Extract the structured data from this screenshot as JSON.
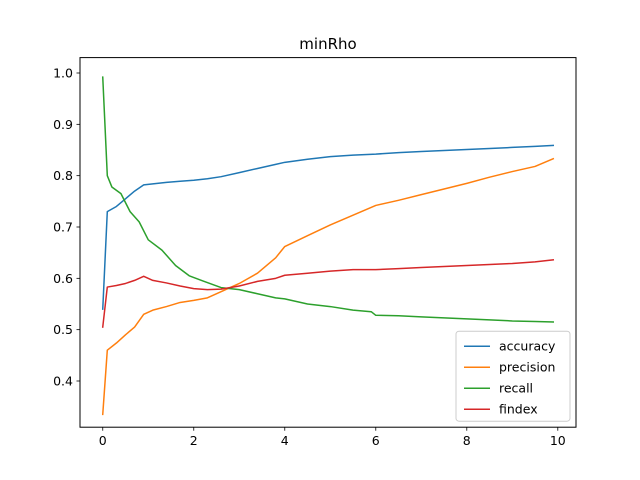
{
  "chart_data": {
    "type": "line",
    "title": "minRho",
    "xlabel": "",
    "ylabel": "",
    "xlim": [
      -0.5,
      10.4
    ],
    "ylim": [
      0.31,
      1.03
    ],
    "grid": false,
    "legend_position": "bottom-right",
    "x_ticks": [
      0,
      2,
      4,
      6,
      8,
      10
    ],
    "y_ticks": [
      0.4,
      0.5,
      0.6,
      0.7,
      0.8,
      0.9,
      1.0
    ],
    "x_tick_labels": [
      "0",
      "2",
      "4",
      "6",
      "8",
      "10"
    ],
    "y_tick_labels": [
      "0.4",
      "0.5",
      "0.6",
      "0.7",
      "0.8",
      "0.9",
      "1.0"
    ],
    "series": [
      {
        "name": "accuracy",
        "color": "#1f77b4",
        "points": [
          [
            0,
            0.54
          ],
          [
            0.1,
            0.73
          ],
          [
            0.3,
            0.74
          ],
          [
            0.5,
            0.755
          ],
          [
            0.7,
            0.77
          ],
          [
            0.9,
            0.782
          ],
          [
            1.1,
            0.784
          ],
          [
            1.4,
            0.787
          ],
          [
            1.7,
            0.789
          ],
          [
            2.0,
            0.791
          ],
          [
            2.3,
            0.794
          ],
          [
            2.6,
            0.798
          ],
          [
            3.0,
            0.806
          ],
          [
            3.4,
            0.814
          ],
          [
            3.8,
            0.822
          ],
          [
            4.0,
            0.826
          ],
          [
            4.5,
            0.832
          ],
          [
            5.0,
            0.837
          ],
          [
            5.5,
            0.84
          ],
          [
            6.0,
            0.842
          ],
          [
            6.5,
            0.845
          ],
          [
            7.0,
            0.847
          ],
          [
            7.5,
            0.849
          ],
          [
            8.0,
            0.851
          ],
          [
            8.5,
            0.853
          ],
          [
            9.0,
            0.855
          ],
          [
            9.5,
            0.857
          ],
          [
            9.9,
            0.859
          ]
        ]
      },
      {
        "name": "precision",
        "color": "#ff7f0e",
        "points": [
          [
            0,
            0.335
          ],
          [
            0.1,
            0.46
          ],
          [
            0.3,
            0.474
          ],
          [
            0.5,
            0.49
          ],
          [
            0.7,
            0.505
          ],
          [
            0.9,
            0.53
          ],
          [
            1.1,
            0.538
          ],
          [
            1.4,
            0.545
          ],
          [
            1.7,
            0.553
          ],
          [
            2.0,
            0.557
          ],
          [
            2.3,
            0.562
          ],
          [
            2.6,
            0.574
          ],
          [
            3.0,
            0.59
          ],
          [
            3.4,
            0.61
          ],
          [
            3.8,
            0.64
          ],
          [
            4.0,
            0.662
          ],
          [
            4.5,
            0.683
          ],
          [
            5.0,
            0.704
          ],
          [
            5.5,
            0.723
          ],
          [
            6.0,
            0.742
          ],
          [
            6.5,
            0.752
          ],
          [
            7.0,
            0.763
          ],
          [
            7.5,
            0.774
          ],
          [
            8.0,
            0.785
          ],
          [
            8.5,
            0.797
          ],
          [
            9.0,
            0.808
          ],
          [
            9.5,
            0.818
          ],
          [
            9.9,
            0.833
          ]
        ]
      },
      {
        "name": "recall",
        "color": "#2ca02c",
        "points": [
          [
            0,
            0.992
          ],
          [
            0.1,
            0.8
          ],
          [
            0.2,
            0.778
          ],
          [
            0.4,
            0.765
          ],
          [
            0.6,
            0.73
          ],
          [
            0.8,
            0.71
          ],
          [
            1.0,
            0.675
          ],
          [
            1.3,
            0.655
          ],
          [
            1.6,
            0.625
          ],
          [
            1.9,
            0.605
          ],
          [
            2.2,
            0.595
          ],
          [
            2.6,
            0.582
          ],
          [
            3.0,
            0.578
          ],
          [
            3.4,
            0.57
          ],
          [
            3.8,
            0.562
          ],
          [
            4.0,
            0.56
          ],
          [
            4.5,
            0.55
          ],
          [
            5.0,
            0.545
          ],
          [
            5.5,
            0.538
          ],
          [
            5.9,
            0.535
          ],
          [
            6.0,
            0.528
          ],
          [
            6.5,
            0.527
          ],
          [
            7.0,
            0.525
          ],
          [
            7.5,
            0.523
          ],
          [
            8.0,
            0.521
          ],
          [
            8.5,
            0.519
          ],
          [
            9.0,
            0.517
          ],
          [
            9.5,
            0.516
          ],
          [
            9.9,
            0.515
          ]
        ]
      },
      {
        "name": "findex",
        "color": "#d62728",
        "points": [
          [
            0,
            0.505
          ],
          [
            0.1,
            0.583
          ],
          [
            0.3,
            0.586
          ],
          [
            0.5,
            0.59
          ],
          [
            0.7,
            0.596
          ],
          [
            0.9,
            0.604
          ],
          [
            1.1,
            0.596
          ],
          [
            1.4,
            0.591
          ],
          [
            1.7,
            0.585
          ],
          [
            2.0,
            0.58
          ],
          [
            2.3,
            0.578
          ],
          [
            2.6,
            0.579
          ],
          [
            3.0,
            0.585
          ],
          [
            3.4,
            0.594
          ],
          [
            3.8,
            0.6
          ],
          [
            4.0,
            0.606
          ],
          [
            4.5,
            0.61
          ],
          [
            5.0,
            0.614
          ],
          [
            5.5,
            0.617
          ],
          [
            6.0,
            0.617
          ],
          [
            6.5,
            0.619
          ],
          [
            7.0,
            0.621
          ],
          [
            7.5,
            0.623
          ],
          [
            8.0,
            0.625
          ],
          [
            8.5,
            0.627
          ],
          [
            9.0,
            0.629
          ],
          [
            9.5,
            0.632
          ],
          [
            9.9,
            0.636
          ]
        ]
      }
    ]
  }
}
